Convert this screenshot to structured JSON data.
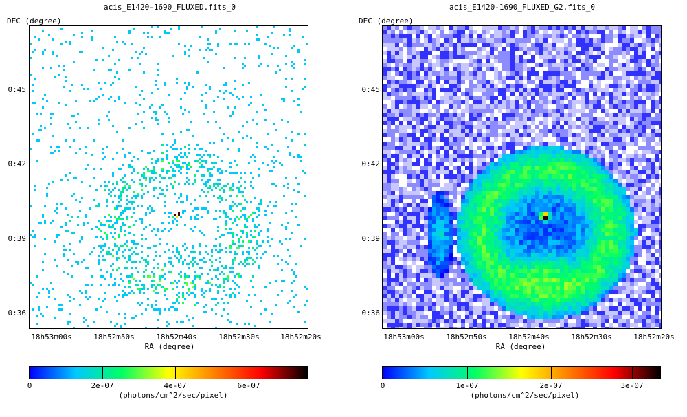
{
  "chart_data": [
    {
      "type": "heatmap",
      "title": "acis_E1420-1690_FLUXED.fits_0",
      "ylabel": "DEC (degree)",
      "xlabel": "RA (degree)",
      "y_ticks": [
        "0:45",
        "0:42",
        "0:39",
        "0:36"
      ],
      "x_ticks": [
        "18h53m00s",
        "18h52m50s",
        "18h52m40s",
        "18h52m30s",
        "18h52m20s"
      ],
      "colorbar": {
        "ticks": [
          "0",
          "2e-07",
          "4e-07",
          "6e-07"
        ],
        "label": "(photons/cm^2/sec/pixel)",
        "range": [
          0,
          7.6e-07
        ]
      },
      "style": "raw-counts"
    },
    {
      "type": "heatmap",
      "title": "acis_E1420-1690_FLUXED_G2.fits_0",
      "ylabel": "DEC (degree)",
      "xlabel": "RA (degree)",
      "y_ticks": [
        "0:45",
        "0:42",
        "0:39",
        "0:36"
      ],
      "x_ticks": [
        "18h53m00s",
        "18h52m50s",
        "18h52m40s",
        "18h52m30s",
        "18h52m20s"
      ],
      "colorbar": {
        "ticks": [
          "0",
          "1e-07",
          "2e-07",
          "3e-07"
        ],
        "label": "(photons/cm^2/sec/pixel)",
        "range": [
          0,
          3.4e-07
        ]
      },
      "style": "smoothed"
    }
  ],
  "colormap": [
    "#0000ff",
    "#00c8ff",
    "#00ff64",
    "#ffff00",
    "#ff8000",
    "#ff0000",
    "#000000"
  ]
}
